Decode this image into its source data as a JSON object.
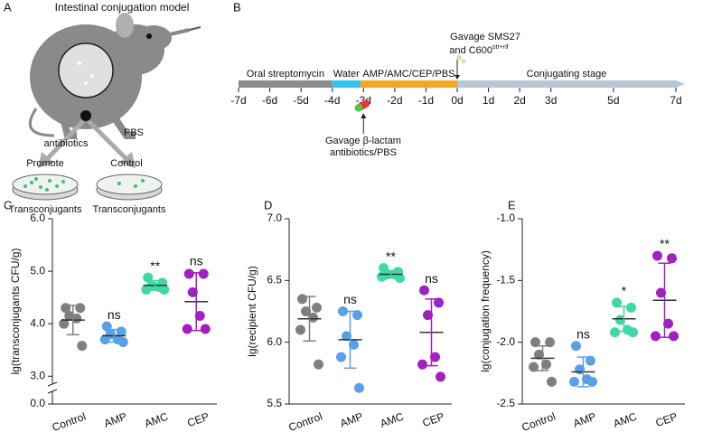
{
  "panel_a": {
    "letter": "A",
    "title": "Intestinal conjugation model",
    "left_arrow": "antibiotics",
    "right_arrow": "PBS",
    "left_dish": "Promote",
    "right_dish": "Control",
    "left_caption": "Transconjugants",
    "right_caption": "Transconjugants"
  },
  "panel_b": {
    "letter": "B",
    "days": [
      {
        "value": -7,
        "label": "-7d"
      },
      {
        "value": -6,
        "label": "-6d"
      },
      {
        "value": -5,
        "label": "-5d"
      },
      {
        "value": -4,
        "label": "-4d"
      },
      {
        "value": -3,
        "label": "-3d"
      },
      {
        "value": -2,
        "label": "-2d"
      },
      {
        "value": -1,
        "label": "-1d"
      },
      {
        "value": 0,
        "label": "0d"
      },
      {
        "value": 1,
        "label": "1d"
      },
      {
        "value": 2,
        "label": "2d"
      },
      {
        "value": 3,
        "label": "3d"
      },
      {
        "value": 5,
        "label": "5d"
      },
      {
        "value": 7,
        "label": "7d"
      }
    ],
    "segments": [
      {
        "name": "Oral streptomycin",
        "start": -7,
        "end": -4,
        "color": "#8c8c8c"
      },
      {
        "name": "Water",
        "start": -4,
        "end": -3.1,
        "color": "#33c3f0"
      },
      {
        "name": "AMP/AMC/CEP/PBS",
        "start": -3.1,
        "end": 0,
        "color": "#f5a623"
      },
      {
        "name": "Conjugating stage",
        "start": 0,
        "end": 7,
        "color": "#b7c7d3"
      }
    ],
    "top_note": [
      "Gavage SMS27",
      "and C600"
    ],
    "top_note_sup": "str+rif",
    "bottom_note": [
      "Gavage β-lactam",
      "antibiotics/PBS"
    ]
  },
  "chart_data": [
    {
      "type": "scatter",
      "letter": "C",
      "ylabel": "lg(transconjugants CFU/g)",
      "categories": [
        "Control",
        "AMP",
        "AMC",
        "CEP"
      ],
      "colors": [
        "#7f7f7f",
        "#5aa0e6",
        "#3fd9a5",
        "#a020c0"
      ],
      "points": [
        [
          4.3,
          4.3,
          4.15,
          4.1,
          4.0,
          3.58
        ],
        [
          3.95,
          3.85,
          3.8,
          3.7,
          3.7,
          3.65
        ],
        [
          4.88,
          4.78,
          4.72,
          4.7,
          4.65,
          4.65
        ],
        [
          4.95,
          4.95,
          4.6,
          4.15,
          3.9,
          3.9
        ]
      ],
      "means": [
        4.07,
        3.77,
        4.73,
        4.42
      ],
      "sd": [
        0.28,
        0.12,
        0.09,
        0.55
      ],
      "annotations": [
        null,
        "ns",
        "**",
        "ns"
      ],
      "ylim": [
        0,
        6
      ],
      "ybreak": [
        0.25,
        2.85
      ],
      "yticks": [
        {
          "value": 0,
          "label": "0.0"
        },
        {
          "value": 3,
          "label": "3.0"
        },
        {
          "value": 4,
          "label": "4.0"
        },
        {
          "value": 5,
          "label": "5.0"
        },
        {
          "value": 6,
          "label": "6.0"
        }
      ]
    },
    {
      "type": "scatter",
      "letter": "D",
      "ylabel": "lg(recipient CFU/g)",
      "categories": [
        "Control",
        "AMP",
        "AMC",
        "CEP"
      ],
      "colors": [
        "#7f7f7f",
        "#5aa0e6",
        "#3fd9a5",
        "#a020c0"
      ],
      "points": [
        [
          6.35,
          6.28,
          6.25,
          6.2,
          6.1,
          5.82
        ],
        [
          6.25,
          6.22,
          6.05,
          5.98,
          5.88,
          5.63
        ],
        [
          6.6,
          6.57,
          6.55,
          6.55,
          6.53,
          6.52
        ],
        [
          6.42,
          6.32,
          6.22,
          5.88,
          5.82,
          5.72
        ]
      ],
      "means": [
        6.19,
        6.02,
        6.55,
        6.08
      ],
      "sd": [
        0.18,
        0.23,
        0.03,
        0.27
      ],
      "annotations": [
        null,
        "ns",
        "**",
        "ns"
      ],
      "ylim": [
        5.5,
        7
      ],
      "yticks": [
        5.5,
        {
          "value": 6,
          "label": "6.0"
        },
        6.5,
        {
          "value": 7,
          "label": "7.0"
        }
      ]
    },
    {
      "type": "scatter",
      "letter": "E",
      "ylabel": "lg(conjugation frequency)",
      "categories": [
        "Control",
        "AMP",
        "AMC",
        "CEP"
      ],
      "colors": [
        "#7f7f7f",
        "#5aa0e6",
        "#3fd9a5",
        "#a020c0"
      ],
      "points": [
        [
          -2.0,
          -2.0,
          -2.1,
          -2.18,
          -2.2,
          -2.32
        ],
        [
          -2.03,
          -2.15,
          -2.22,
          -2.3,
          -2.32,
          -2.32
        ],
        [
          -1.68,
          -1.72,
          -1.82,
          -1.9,
          -1.92,
          -1.92
        ],
        [
          -1.3,
          -1.32,
          -1.6,
          -1.85,
          -1.95,
          -1.95
        ]
      ],
      "means": [
        -2.13,
        -2.24,
        -1.81,
        -1.66
      ],
      "sd": [
        0.1,
        0.12,
        0.1,
        0.3
      ],
      "annotations": [
        null,
        "ns",
        "*",
        "**"
      ],
      "ylim": [
        -2.5,
        -1
      ],
      "yticks": [
        -2.5,
        {
          "value": -2,
          "label": "-2.0"
        },
        -1.5,
        {
          "value": -1,
          "label": "-1.0"
        }
      ]
    }
  ]
}
